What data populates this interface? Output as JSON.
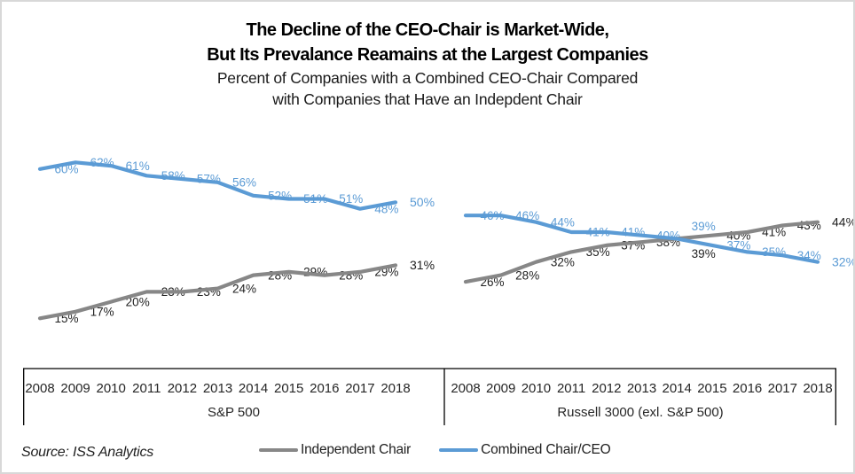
{
  "title": {
    "line1": "The Decline of the CEO-Chair is Market-Wide,",
    "line2": "But Its Prevalance Reamains at the Largest Companies",
    "subtitle1": "Percent of Companies with a Combined CEO-Chair Compared",
    "subtitle2": "with Companies that Have an Indepdent Chair"
  },
  "source_note": "Source: ISS Analytics",
  "legend": [
    {
      "label": "Independent Chair",
      "color": "#878787"
    },
    {
      "label": "Combined Chair/CEO",
      "color": "#5b9bd5"
    }
  ],
  "colors": {
    "combined_line": "#5b9bd5",
    "independent_line": "#878787",
    "independent_label_text": "#1f1f1f",
    "combined_label_text": "#5b9bd5",
    "axis_line": "#000000",
    "axis_text": "#262626",
    "frame_border": "#d8d8d8"
  },
  "chart_data": {
    "type": "line",
    "categories": [
      "2008",
      "2009",
      "2010",
      "2011",
      "2012",
      "2013",
      "2014",
      "2015",
      "2016",
      "2017",
      "2018"
    ],
    "value_suffix": "%",
    "ylim": [
      0,
      70
    ],
    "grid": false,
    "legend_position": "bottom",
    "panels": [
      {
        "label": "S&P 500",
        "series": [
          {
            "name": "Independent Chair",
            "color": "#878787",
            "label_color": "#1f1f1f",
            "values": [
              15,
              17,
              20,
              23,
              23,
              24,
              28,
              29,
              28,
              29,
              31
            ]
          },
          {
            "name": "Combined Chair/CEO",
            "color": "#5b9bd5",
            "label_color": "#5b9bd5",
            "values": [
              60,
              62,
              61,
              58,
              57,
              56,
              52,
              51,
              51,
              48,
              50
            ]
          }
        ]
      },
      {
        "label": "Russell 3000 (exl. S&P 500)",
        "series": [
          {
            "name": "Independent Chair",
            "color": "#878787",
            "label_color": "#1f1f1f",
            "values": [
              26,
              28,
              32,
              35,
              37,
              38,
              39,
              40,
              41,
              43,
              44
            ]
          },
          {
            "name": "Combined Chair/CEO",
            "color": "#5b9bd5",
            "label_color": "#5b9bd5",
            "values": [
              46,
              46,
              44,
              41,
              41,
              40,
              39,
              37,
              35,
              34,
              32
            ]
          }
        ]
      }
    ]
  }
}
